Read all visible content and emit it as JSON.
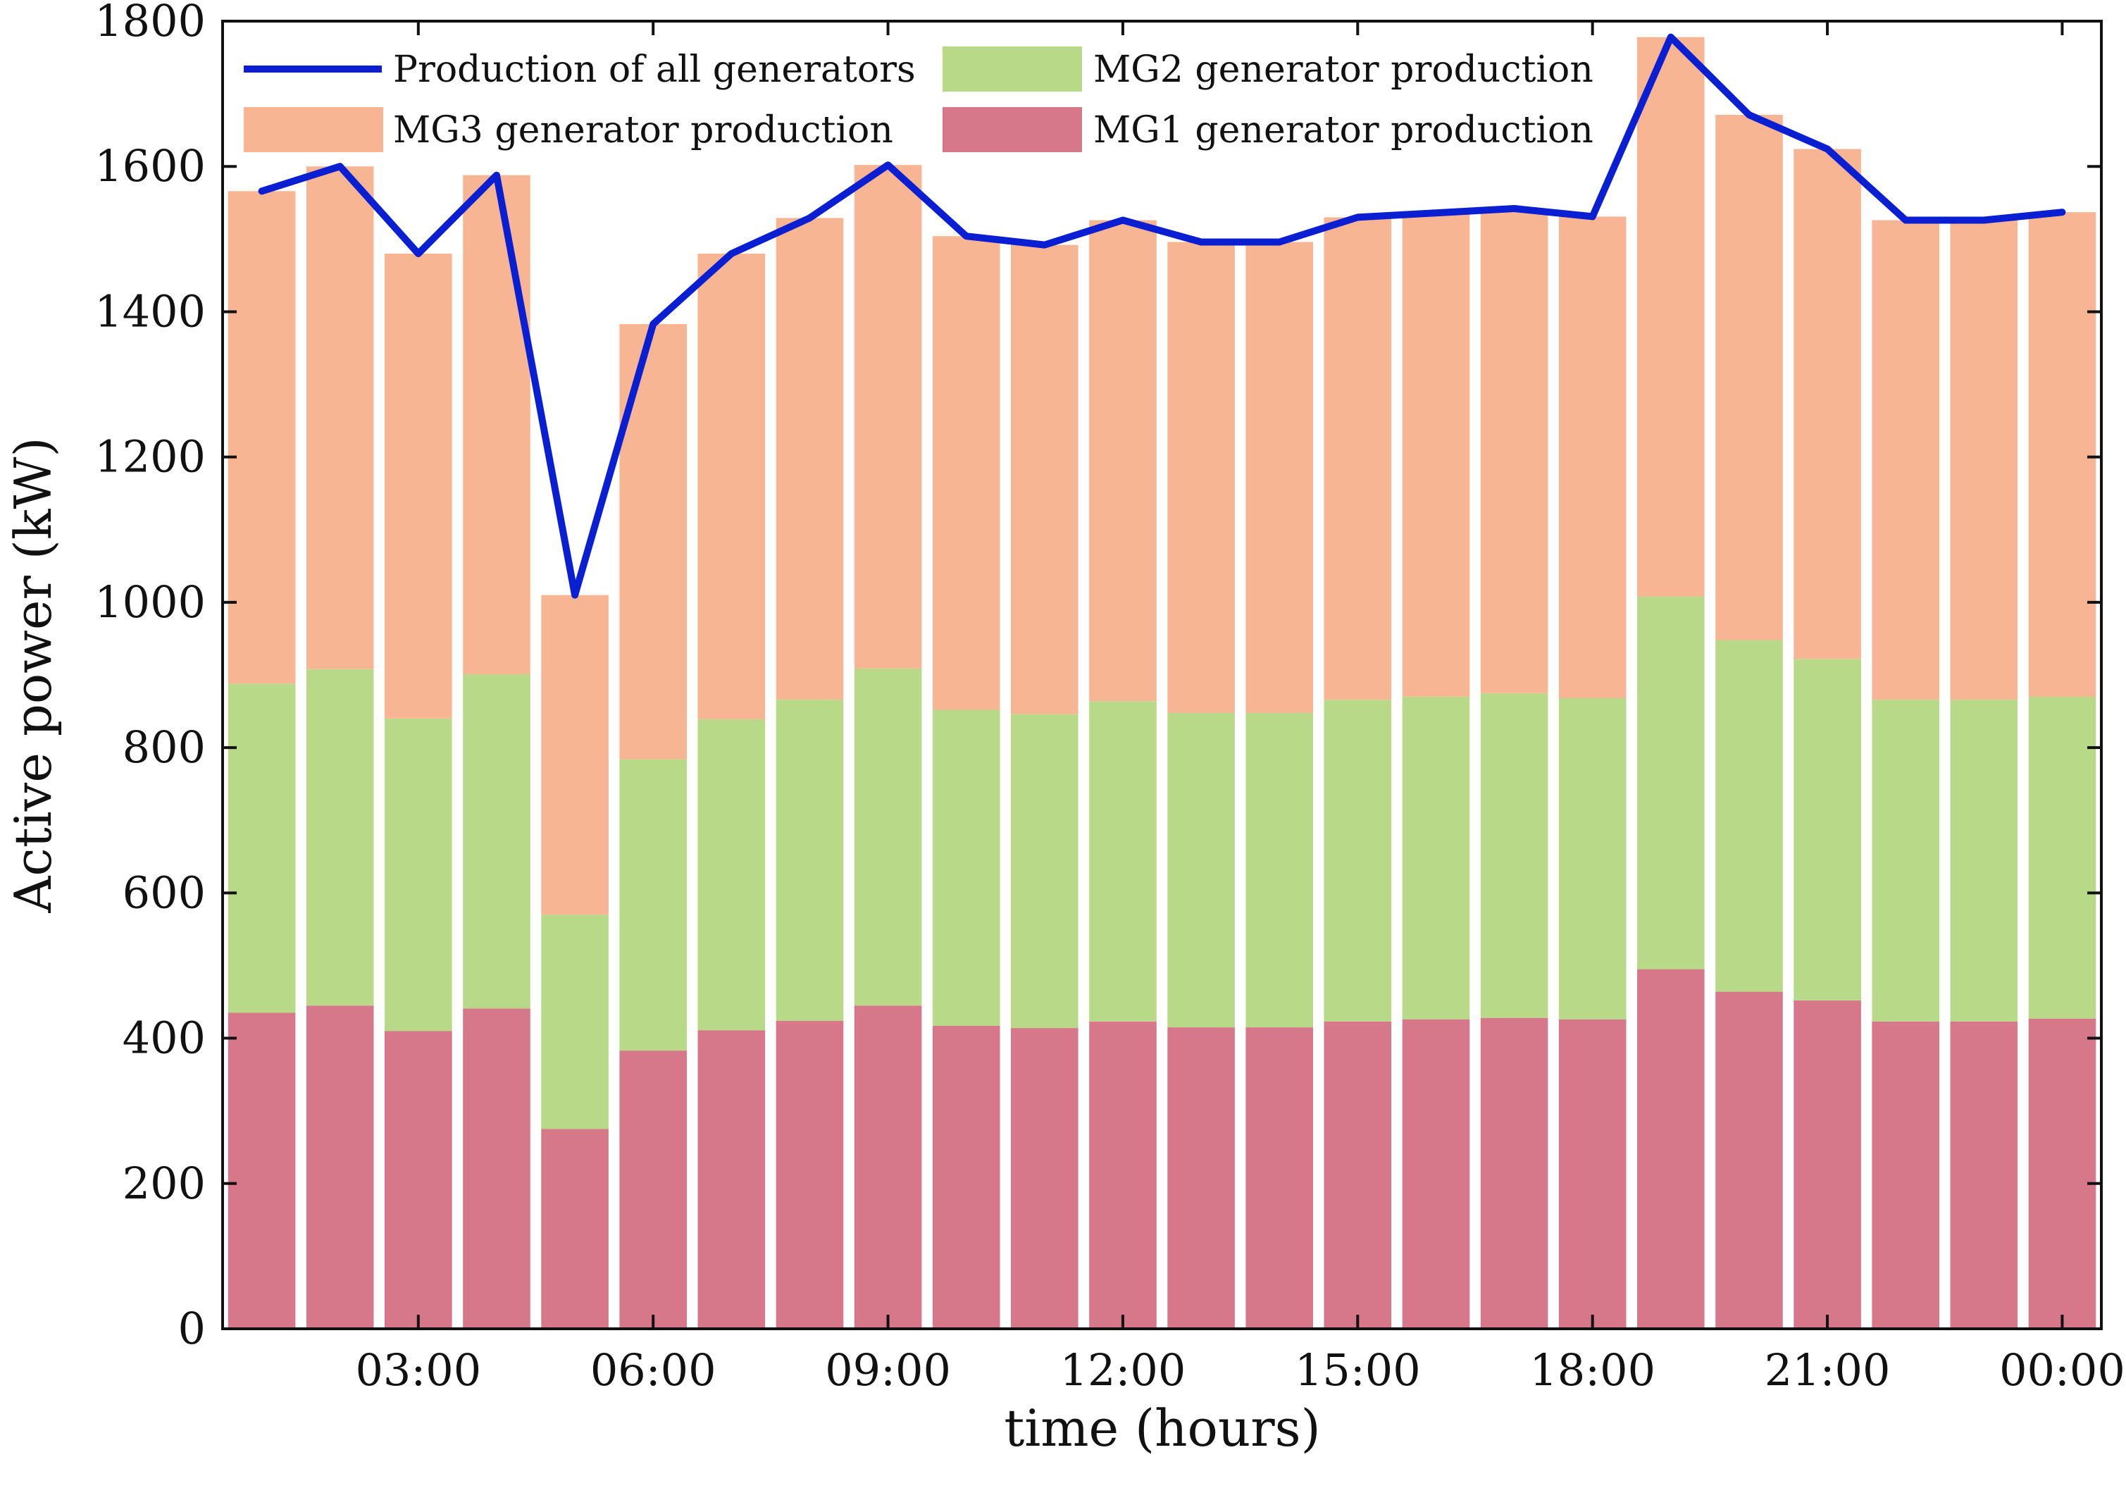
{
  "colors": {
    "mg1": "#D7788A",
    "mg2": "#B7D988",
    "mg3": "#F8B593",
    "total_line": "#0A1ED2",
    "axis": "#111111",
    "background": "#FFFFFF"
  },
  "chart_data": {
    "type": "bar",
    "stacked": true,
    "title": "",
    "xlabel": "time (hours)",
    "ylabel": "Active power (kW)",
    "ylim": [
      0,
      1800
    ],
    "yticks": [
      "0",
      "200",
      "400",
      "600",
      "800",
      "1000",
      "1200",
      "1400",
      "1600",
      "1800"
    ],
    "xtick_labels": [
      "03:00",
      "06:00",
      "09:00",
      "12:00",
      "15:00",
      "18:00",
      "21:00",
      "00:00"
    ],
    "xtick_hours": [
      3,
      6,
      9,
      12,
      15,
      18,
      21,
      24
    ],
    "hours": [
      1,
      2,
      3,
      4,
      5,
      6,
      7,
      8,
      9,
      10,
      11,
      12,
      13,
      14,
      15,
      16,
      17,
      18,
      19,
      20,
      21,
      22,
      23,
      24
    ],
    "grid": false,
    "legend_placement": "top",
    "series": [
      {
        "key": "mg1",
        "name": "MG1 generator production",
        "values": [
          435,
          445,
          410,
          441,
          275,
          383,
          411,
          424,
          445,
          417,
          414,
          423,
          415,
          415,
          423,
          426,
          428,
          426,
          495,
          464,
          452,
          423,
          423,
          427
        ]
      },
      {
        "key": "mg2",
        "name": "MG2 generator production",
        "values": [
          453,
          463,
          430,
          460,
          295,
          401,
          428,
          442,
          464,
          435,
          432,
          441,
          433,
          433,
          443,
          444,
          447,
          442,
          513,
          484,
          470,
          443,
          443,
          443
        ]
      },
      {
        "key": "mg3",
        "name": "MG3 generator production",
        "values": [
          678,
          692,
          640,
          687,
          440,
          599,
          641,
          663,
          693,
          652,
          646,
          662,
          648,
          648,
          664,
          666,
          667,
          663,
          770,
          723,
          702,
          660,
          660,
          667
        ]
      }
    ],
    "line_series": {
      "key": "total",
      "name": "Production of all generators",
      "values": [
        1566,
        1600,
        1480,
        1588,
        1010,
        1383,
        1480,
        1529,
        1602,
        1504,
        1492,
        1526,
        1496,
        1496,
        1530,
        1536,
        1542,
        1531,
        1778,
        1671,
        1624,
        1526,
        1526,
        1537
      ]
    }
  }
}
